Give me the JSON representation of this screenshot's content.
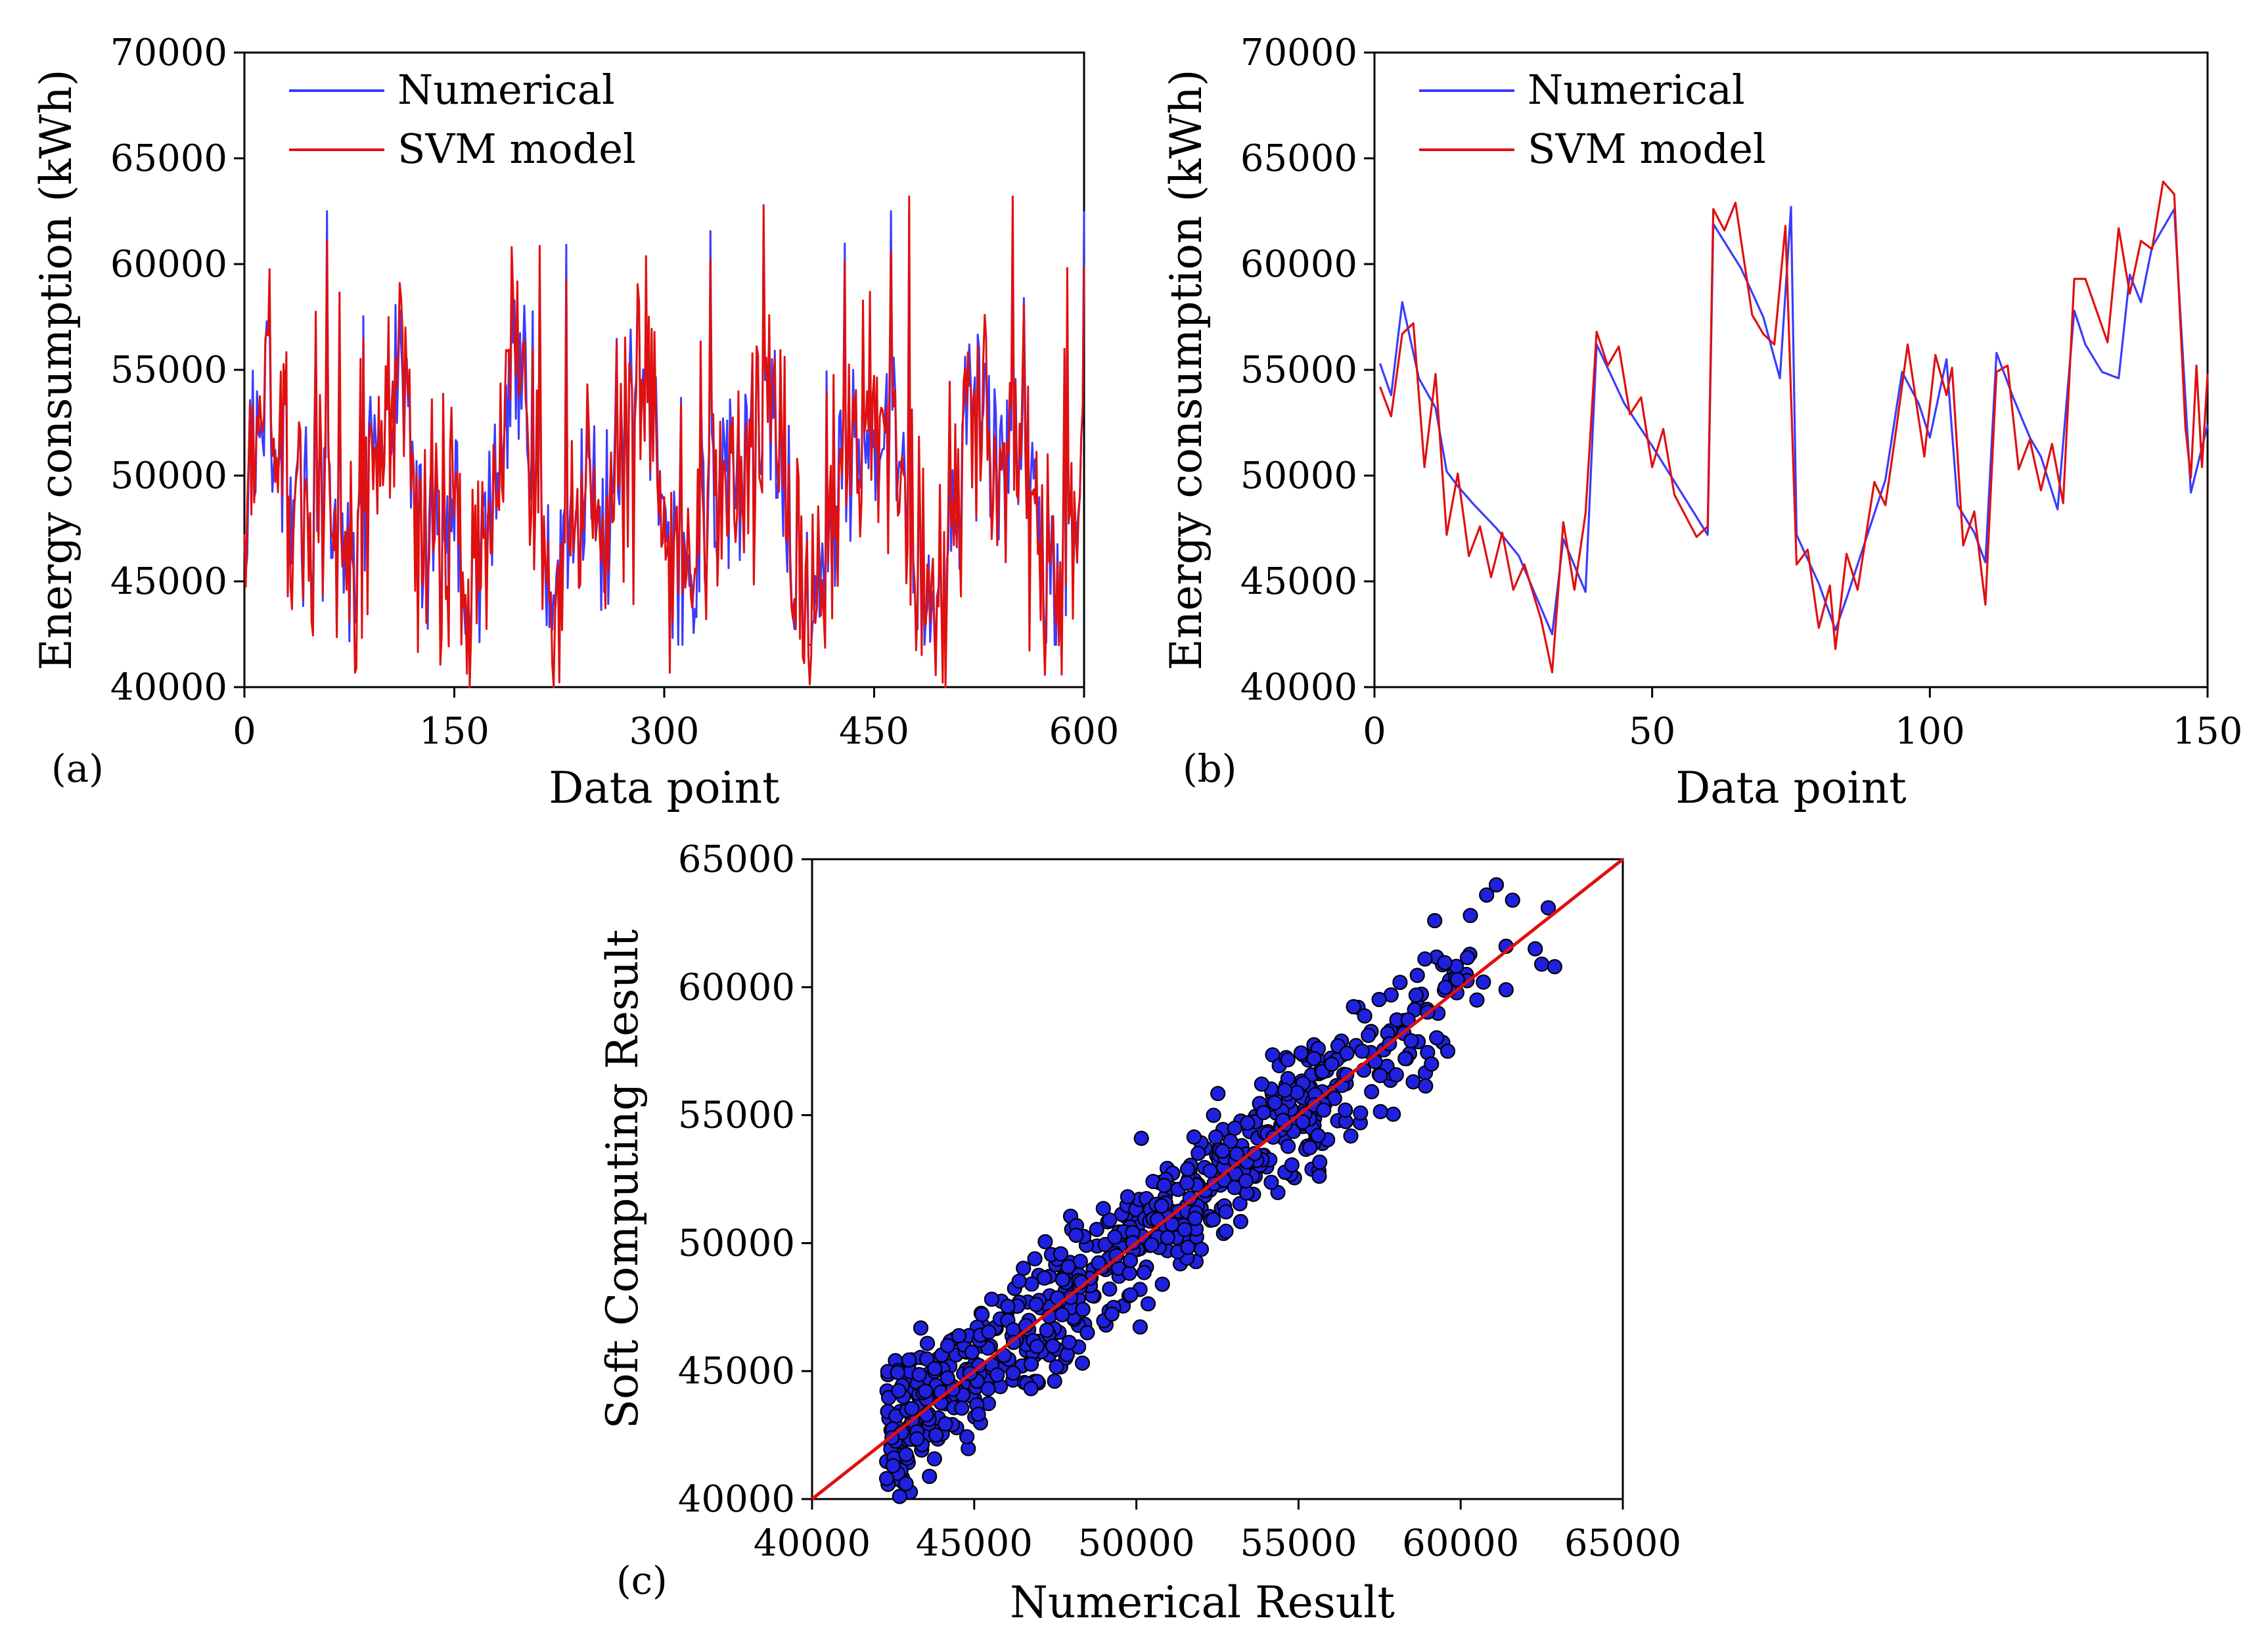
{
  "figure": {
    "panels": [
      "(a)",
      "(b)",
      "(c)"
    ]
  },
  "chart_data": [
    {
      "id": "a",
      "type": "line",
      "panel_label": "(a)",
      "title": "",
      "xlabel": "Data point",
      "ylabel": "Energy consumption (kWh)",
      "xlim": [
        0,
        600
      ],
      "ylim": [
        40000,
        70000
      ],
      "xticks": [
        "0",
        "150",
        "300",
        "450",
        "600"
      ],
      "yticks": [
        "40000",
        "45000",
        "50000",
        "55000",
        "60000",
        "65000",
        "70000"
      ],
      "legend_position": "top-left",
      "series": [
        {
          "name": "Numerical",
          "color": "#3b3bff"
        },
        {
          "name": "SVM model",
          "color": "#e01010"
        }
      ]
    },
    {
      "id": "b",
      "type": "line",
      "panel_label": "(b)",
      "title": "",
      "xlabel": "Data point",
      "ylabel": "Energy consumption (kWh)",
      "xlim": [
        0,
        150
      ],
      "ylim": [
        40000,
        70000
      ],
      "xticks": [
        "0",
        "50",
        "100",
        "150"
      ],
      "yticks": [
        "40000",
        "45000",
        "50000",
        "55000",
        "60000",
        "65000",
        "70000"
      ],
      "legend_position": "top-left",
      "series": [
        {
          "name": "Numerical",
          "color": "#3b3bff",
          "keypoints": [
            [
              1,
              55300
            ],
            [
              3,
              53800
            ],
            [
              5,
              58200
            ],
            [
              8,
              54600
            ],
            [
              11,
              53200
            ],
            [
              13,
              50200
            ],
            [
              15,
              49500
            ],
            [
              18,
              48600
            ],
            [
              22,
              47500
            ],
            [
              26,
              46200
            ],
            [
              32,
              42500
            ],
            [
              34,
              47000
            ],
            [
              38,
              44500
            ],
            [
              40,
              56200
            ],
            [
              45,
              53400
            ],
            [
              50,
              51400
            ],
            [
              55,
              49300
            ],
            [
              60,
              47200
            ],
            [
              61,
              61900
            ],
            [
              66,
              59800
            ],
            [
              70,
              57500
            ],
            [
              73,
              54600
            ],
            [
              75,
              62700
            ],
            [
              76,
              47200
            ],
            [
              80,
              44900
            ],
            [
              83,
              42700
            ],
            [
              85,
              44200
            ],
            [
              92,
              49800
            ],
            [
              95,
              54900
            ],
            [
              98,
              53400
            ],
            [
              100,
              51800
            ],
            [
              103,
              55500
            ],
            [
              105,
              48600
            ],
            [
              108,
              47300
            ],
            [
              110,
              45900
            ],
            [
              112,
              55800
            ],
            [
              115,
              53700
            ],
            [
              118,
              51800
            ],
            [
              120,
              50900
            ],
            [
              123,
              48400
            ],
            [
              126,
              57800
            ],
            [
              128,
              56200
            ],
            [
              131,
              54900
            ],
            [
              134,
              54600
            ],
            [
              136,
              59500
            ],
            [
              138,
              58200
            ],
            [
              140,
              60800
            ],
            [
              142,
              61700
            ],
            [
              144,
              62600
            ],
            [
              147,
              49200
            ],
            [
              150,
              52400
            ]
          ]
        },
        {
          "name": "SVM model",
          "color": "#e01010",
          "keypoints": [
            [
              1,
              54200
            ],
            [
              3,
              52800
            ],
            [
              5,
              56700
            ],
            [
              7,
              57200
            ],
            [
              9,
              50400
            ],
            [
              11,
              54800
            ],
            [
              13,
              47200
            ],
            [
              15,
              50100
            ],
            [
              17,
              46200
            ],
            [
              19,
              47600
            ],
            [
              21,
              45200
            ],
            [
              23,
              47300
            ],
            [
              25,
              44600
            ],
            [
              27,
              45800
            ],
            [
              30,
              43200
            ],
            [
              32,
              40700
            ],
            [
              34,
              47800
            ],
            [
              36,
              44600
            ],
            [
              38,
              48200
            ],
            [
              40,
              56800
            ],
            [
              42,
              55200
            ],
            [
              44,
              56100
            ],
            [
              46,
              52900
            ],
            [
              48,
              53700
            ],
            [
              50,
              50400
            ],
            [
              52,
              52200
            ],
            [
              54,
              49100
            ],
            [
              56,
              48100
            ],
            [
              58,
              47100
            ],
            [
              60,
              47600
            ],
            [
              61,
              62600
            ],
            [
              63,
              61600
            ],
            [
              65,
              62900
            ],
            [
              68,
              57600
            ],
            [
              70,
              56700
            ],
            [
              72,
              56200
            ],
            [
              74,
              61800
            ],
            [
              76,
              45800
            ],
            [
              78,
              46500
            ],
            [
              80,
              42800
            ],
            [
              82,
              44800
            ],
            [
              83,
              41800
            ],
            [
              85,
              46300
            ],
            [
              87,
              44600
            ],
            [
              90,
              49700
            ],
            [
              92,
              48600
            ],
            [
              94,
              52300
            ],
            [
              96,
              56200
            ],
            [
              99,
              50900
            ],
            [
              101,
              55700
            ],
            [
              103,
              53800
            ],
            [
              104,
              55100
            ],
            [
              106,
              46700
            ],
            [
              108,
              48300
            ],
            [
              110,
              43900
            ],
            [
              112,
              54900
            ],
            [
              114,
              55200
            ],
            [
              116,
              50300
            ],
            [
              118,
              51700
            ],
            [
              120,
              49300
            ],
            [
              122,
              51500
            ],
            [
              124,
              48700
            ],
            [
              126,
              59300
            ],
            [
              128,
              59300
            ],
            [
              130,
              57800
            ],
            [
              132,
              56300
            ],
            [
              134,
              61700
            ],
            [
              136,
              58600
            ],
            [
              138,
              61100
            ],
            [
              140,
              60700
            ],
            [
              142,
              63900
            ],
            [
              144,
              63300
            ],
            [
              146,
              52300
            ],
            [
              147,
              49900
            ],
            [
              148,
              55200
            ],
            [
              149,
              50400
            ],
            [
              150,
              54800
            ]
          ]
        }
      ]
    },
    {
      "id": "c",
      "type": "scatter",
      "panel_label": "(c)",
      "title": "",
      "xlabel": "Numerical Result",
      "ylabel": "Soft Computing Result",
      "xlim": [
        40000,
        65000
      ],
      "ylim": [
        40000,
        65000
      ],
      "xticks": [
        "40000",
        "45000",
        "50000",
        "55000",
        "60000",
        "65000"
      ],
      "yticks": [
        "40000",
        "45000",
        "50000",
        "55000",
        "60000",
        "65000"
      ],
      "reference_line": {
        "from": [
          40000,
          40000
        ],
        "to": [
          65000,
          65000
        ],
        "color": "#e01010"
      },
      "point_color": "#2020e0",
      "highlighted_points": [
        [
          61100,
          64000
        ],
        [
          60800,
          63600
        ],
        [
          61600,
          63400
        ],
        [
          62700,
          63100
        ],
        [
          60300,
          62800
        ],
        [
          59200,
          62600
        ],
        [
          62300,
          61500
        ],
        [
          61400,
          59900
        ],
        [
          62500,
          60900
        ],
        [
          62900,
          60800
        ],
        [
          61400,
          61600
        ],
        [
          60700,
          60200
        ],
        [
          59900,
          60300
        ],
        [
          60500,
          59500
        ],
        [
          58900,
          61100
        ],
        [
          59600,
          57500
        ],
        [
          59100,
          57000
        ],
        [
          42300,
          40800
        ],
        [
          42700,
          40100
        ],
        [
          42500,
          41300
        ],
        [
          42900,
          40600
        ]
      ]
    }
  ]
}
